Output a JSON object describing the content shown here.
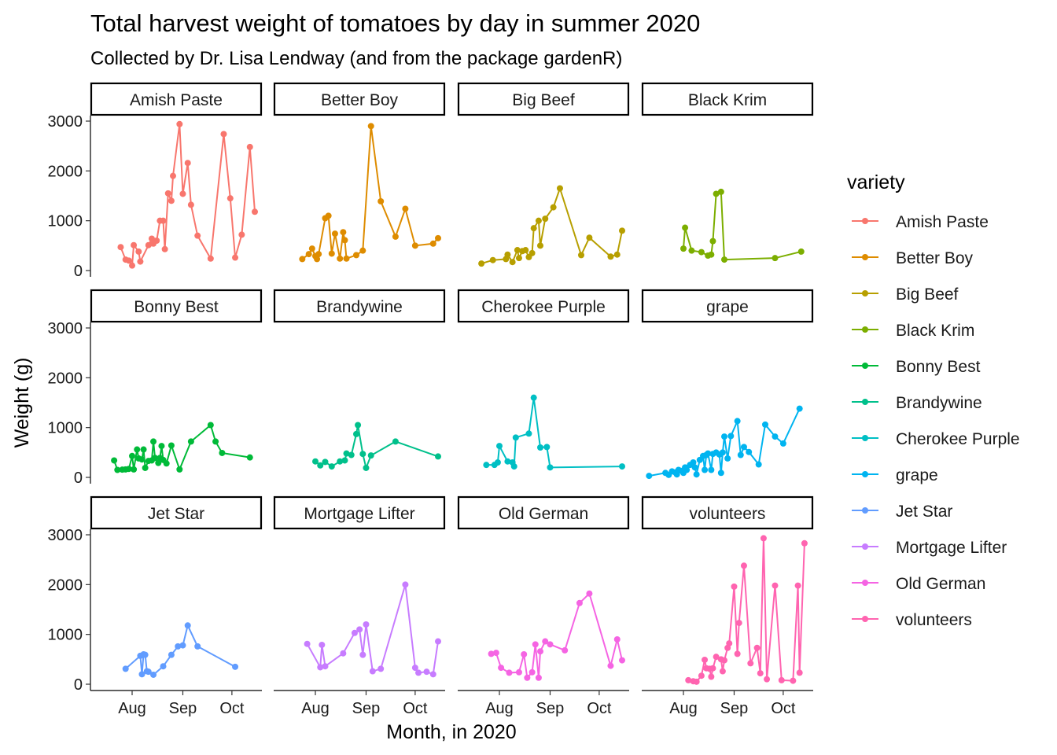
{
  "chart_data": {
    "type": "line",
    "title": "Total harvest weight of tomatoes by day in summer 2020",
    "subtitle": "Collected by Dr. Lisa Lendway (and from the package gardenR)",
    "xlabel": "Month, in 2020",
    "ylabel": "Weight (g)",
    "x_ticks": [
      {
        "date": "2020-08-01",
        "label": "Aug"
      },
      {
        "date": "2020-09-01",
        "label": "Sep"
      },
      {
        "date": "2020-10-01",
        "label": "Oct"
      }
    ],
    "y_ticks": [
      0,
      1000,
      2000,
      3000
    ],
    "xlim": [
      "2020-07-07",
      "2020-10-18"
    ],
    "ylim": [
      -100,
      3150
    ],
    "grid": false,
    "facets": "wrap, 4 columns, shared axes",
    "legend": {
      "title": "variety",
      "position": "right"
    },
    "series": [
      {
        "name": "Amish Paste",
        "color": "#F8766D",
        "points": [
          [
            "2020-07-25",
            470
          ],
          [
            "2020-07-28",
            220
          ],
          [
            "2020-07-30",
            200
          ],
          [
            "2020-08-01",
            100
          ],
          [
            "2020-08-02",
            510
          ],
          [
            "2020-08-05",
            380
          ],
          [
            "2020-08-06",
            180
          ],
          [
            "2020-08-11",
            510
          ],
          [
            "2020-08-13",
            640
          ],
          [
            "2020-08-14",
            540
          ],
          [
            "2020-08-16",
            600
          ],
          [
            "2020-08-18",
            1000
          ],
          [
            "2020-08-20",
            1000
          ],
          [
            "2020-08-21",
            430
          ],
          [
            "2020-08-23",
            1550
          ],
          [
            "2020-08-25",
            1400
          ],
          [
            "2020-08-26",
            1900
          ],
          [
            "2020-08-30",
            2940
          ],
          [
            "2020-09-01",
            1540
          ],
          [
            "2020-09-04",
            2160
          ],
          [
            "2020-09-06",
            1320
          ],
          [
            "2020-09-10",
            700
          ],
          [
            "2020-09-18",
            240
          ],
          [
            "2020-09-26",
            2740
          ],
          [
            "2020-09-30",
            1450
          ],
          [
            "2020-10-03",
            260
          ],
          [
            "2020-10-07",
            720
          ],
          [
            "2020-10-12",
            2480
          ],
          [
            "2020-10-15",
            1180
          ]
        ]
      },
      {
        "name": "Better Boy",
        "color": "#DE8C00",
        "points": [
          [
            "2020-07-24",
            230
          ],
          [
            "2020-07-28",
            330
          ],
          [
            "2020-07-30",
            440
          ],
          [
            "2020-08-01",
            290
          ],
          [
            "2020-08-02",
            230
          ],
          [
            "2020-08-03",
            330
          ],
          [
            "2020-08-07",
            1050
          ],
          [
            "2020-08-09",
            1100
          ],
          [
            "2020-08-11",
            340
          ],
          [
            "2020-08-13",
            740
          ],
          [
            "2020-08-16",
            240
          ],
          [
            "2020-08-18",
            770
          ],
          [
            "2020-08-19",
            610
          ],
          [
            "2020-08-20",
            240
          ],
          [
            "2020-08-26",
            310
          ],
          [
            "2020-08-30",
            400
          ],
          [
            "2020-09-04",
            2900
          ],
          [
            "2020-09-10",
            1390
          ],
          [
            "2020-09-19",
            680
          ],
          [
            "2020-09-25",
            1240
          ],
          [
            "2020-10-01",
            500
          ],
          [
            "2020-10-12",
            540
          ],
          [
            "2020-10-15",
            650
          ]
        ]
      },
      {
        "name": "Big Beef",
        "color": "#B79F00",
        "points": [
          [
            "2020-07-21",
            140
          ],
          [
            "2020-07-28",
            210
          ],
          [
            "2020-08-05",
            230
          ],
          [
            "2020-08-06",
            320
          ],
          [
            "2020-08-09",
            170
          ],
          [
            "2020-08-12",
            410
          ],
          [
            "2020-08-13",
            250
          ],
          [
            "2020-08-15",
            390
          ],
          [
            "2020-08-17",
            410
          ],
          [
            "2020-08-19",
            270
          ],
          [
            "2020-08-21",
            350
          ],
          [
            "2020-08-22",
            850
          ],
          [
            "2020-08-25",
            1000
          ],
          [
            "2020-08-26",
            500
          ],
          [
            "2020-08-29",
            1040
          ],
          [
            "2020-09-03",
            1270
          ],
          [
            "2020-09-07",
            1650
          ],
          [
            "2020-09-20",
            310
          ],
          [
            "2020-09-25",
            660
          ],
          [
            "2020-10-08",
            280
          ],
          [
            "2020-10-12",
            320
          ],
          [
            "2020-10-15",
            800
          ]
        ]
      },
      {
        "name": "Black Krim",
        "color": "#7CAE00",
        "points": [
          [
            "2020-08-01",
            440
          ],
          [
            "2020-08-02",
            860
          ],
          [
            "2020-08-06",
            400
          ],
          [
            "2020-08-12",
            370
          ],
          [
            "2020-08-16",
            300
          ],
          [
            "2020-08-18",
            320
          ],
          [
            "2020-08-19",
            590
          ],
          [
            "2020-08-21",
            1540
          ],
          [
            "2020-08-24",
            1580
          ],
          [
            "2020-08-26",
            220
          ],
          [
            "2020-09-26",
            250
          ],
          [
            "2020-10-12",
            380
          ]
        ]
      },
      {
        "name": "Bonny Best",
        "color": "#00BA38",
        "points": [
          [
            "2020-07-21",
            340
          ],
          [
            "2020-07-23",
            150
          ],
          [
            "2020-07-26",
            155
          ],
          [
            "2020-07-28",
            160
          ],
          [
            "2020-07-30",
            170
          ],
          [
            "2020-08-01",
            430
          ],
          [
            "2020-08-02",
            160
          ],
          [
            "2020-08-04",
            560
          ],
          [
            "2020-08-05",
            380
          ],
          [
            "2020-08-07",
            360
          ],
          [
            "2020-08-08",
            560
          ],
          [
            "2020-08-09",
            190
          ],
          [
            "2020-08-11",
            330
          ],
          [
            "2020-08-13",
            340
          ],
          [
            "2020-08-14",
            720
          ],
          [
            "2020-08-15",
            390
          ],
          [
            "2020-08-17",
            290
          ],
          [
            "2020-08-18",
            390
          ],
          [
            "2020-08-19",
            630
          ],
          [
            "2020-08-20",
            350
          ],
          [
            "2020-08-22",
            280
          ],
          [
            "2020-08-25",
            640
          ],
          [
            "2020-08-30",
            160
          ],
          [
            "2020-09-06",
            720
          ],
          [
            "2020-09-18",
            1050
          ],
          [
            "2020-09-21",
            720
          ],
          [
            "2020-09-25",
            490
          ],
          [
            "2020-10-12",
            400
          ]
        ]
      },
      {
        "name": "Brandywine",
        "color": "#00C08B",
        "points": [
          [
            "2020-08-01",
            320
          ],
          [
            "2020-08-04",
            240
          ],
          [
            "2020-08-07",
            310
          ],
          [
            "2020-08-11",
            220
          ],
          [
            "2020-08-16",
            320
          ],
          [
            "2020-08-19",
            340
          ],
          [
            "2020-08-20",
            480
          ],
          [
            "2020-08-23",
            450
          ],
          [
            "2020-08-26",
            870
          ],
          [
            "2020-08-27",
            1050
          ],
          [
            "2020-08-30",
            470
          ],
          [
            "2020-09-01",
            190
          ],
          [
            "2020-09-04",
            440
          ],
          [
            "2020-09-19",
            720
          ],
          [
            "2020-10-15",
            420
          ]
        ]
      },
      {
        "name": "Cherokee Purple",
        "color": "#00BFC4",
        "points": [
          [
            "2020-07-24",
            250
          ],
          [
            "2020-07-29",
            250
          ],
          [
            "2020-07-31",
            300
          ],
          [
            "2020-08-01",
            630
          ],
          [
            "2020-08-06",
            320
          ],
          [
            "2020-08-09",
            300
          ],
          [
            "2020-08-10",
            220
          ],
          [
            "2020-08-11",
            800
          ],
          [
            "2020-08-19",
            880
          ],
          [
            "2020-08-22",
            1600
          ],
          [
            "2020-08-26",
            600
          ],
          [
            "2020-08-30",
            610
          ],
          [
            "2020-09-01",
            200
          ],
          [
            "2020-10-15",
            220
          ]
        ]
      },
      {
        "name": "grape",
        "color": "#00B4F0",
        "points": [
          [
            "2020-07-11",
            30
          ],
          [
            "2020-07-21",
            90
          ],
          [
            "2020-07-23",
            50
          ],
          [
            "2020-07-25",
            120
          ],
          [
            "2020-07-27",
            100
          ],
          [
            "2020-07-28",
            60
          ],
          [
            "2020-07-29",
            150
          ],
          [
            "2020-07-31",
            130
          ],
          [
            "2020-08-01",
            90
          ],
          [
            "2020-08-02",
            200
          ],
          [
            "2020-08-03",
            150
          ],
          [
            "2020-08-05",
            250
          ],
          [
            "2020-08-07",
            300
          ],
          [
            "2020-08-08",
            200
          ],
          [
            "2020-08-09",
            60
          ],
          [
            "2020-08-11",
            350
          ],
          [
            "2020-08-13",
            430
          ],
          [
            "2020-08-14",
            150
          ],
          [
            "2020-08-15",
            450
          ],
          [
            "2020-08-16",
            480
          ],
          [
            "2020-08-18",
            150
          ],
          [
            "2020-08-19",
            470
          ],
          [
            "2020-08-21",
            500
          ],
          [
            "2020-08-23",
            460
          ],
          [
            "2020-08-24",
            90
          ],
          [
            "2020-08-25",
            500
          ],
          [
            "2020-08-26",
            820
          ],
          [
            "2020-08-28",
            380
          ],
          [
            "2020-08-30",
            830
          ],
          [
            "2020-09-03",
            1130
          ],
          [
            "2020-09-05",
            450
          ],
          [
            "2020-09-07",
            610
          ],
          [
            "2020-09-10",
            510
          ],
          [
            "2020-09-16",
            260
          ],
          [
            "2020-09-20",
            1060
          ],
          [
            "2020-09-26",
            820
          ],
          [
            "2020-10-01",
            680
          ],
          [
            "2020-10-11",
            1380
          ]
        ]
      },
      {
        "name": "Jet Star",
        "color": "#619CFF",
        "points": [
          [
            "2020-07-28",
            310
          ],
          [
            "2020-08-06",
            570
          ],
          [
            "2020-08-07",
            200
          ],
          [
            "2020-08-08",
            600
          ],
          [
            "2020-08-09",
            590
          ],
          [
            "2020-08-10",
            260
          ],
          [
            "2020-08-11",
            250
          ],
          [
            "2020-08-14",
            190
          ],
          [
            "2020-08-20",
            360
          ],
          [
            "2020-08-25",
            590
          ],
          [
            "2020-08-29",
            760
          ],
          [
            "2020-09-01",
            780
          ],
          [
            "2020-09-04",
            1180
          ],
          [
            "2020-09-10",
            760
          ],
          [
            "2020-10-03",
            350
          ]
        ]
      },
      {
        "name": "Mortgage Lifter",
        "color": "#C77CFF",
        "points": [
          [
            "2020-07-27",
            810
          ],
          [
            "2020-08-04",
            340
          ],
          [
            "2020-08-05",
            790
          ],
          [
            "2020-08-07",
            360
          ],
          [
            "2020-08-18",
            620
          ],
          [
            "2020-08-25",
            1030
          ],
          [
            "2020-08-28",
            1100
          ],
          [
            "2020-08-30",
            590
          ],
          [
            "2020-09-01",
            1200
          ],
          [
            "2020-09-05",
            260
          ],
          [
            "2020-09-10",
            310
          ],
          [
            "2020-09-25",
            2000
          ],
          [
            "2020-10-01",
            330
          ],
          [
            "2020-10-03",
            230
          ],
          [
            "2020-10-08",
            250
          ],
          [
            "2020-10-12",
            200
          ],
          [
            "2020-10-15",
            860
          ]
        ]
      },
      {
        "name": "Old German",
        "color": "#F564E3",
        "points": [
          [
            "2020-07-27",
            610
          ],
          [
            "2020-07-30",
            630
          ],
          [
            "2020-08-02",
            330
          ],
          [
            "2020-08-07",
            230
          ],
          [
            "2020-08-13",
            240
          ],
          [
            "2020-08-16",
            600
          ],
          [
            "2020-08-18",
            130
          ],
          [
            "2020-08-21",
            240
          ],
          [
            "2020-08-23",
            800
          ],
          [
            "2020-08-25",
            130
          ],
          [
            "2020-08-26",
            660
          ],
          [
            "2020-08-29",
            860
          ],
          [
            "2020-09-01",
            800
          ],
          [
            "2020-09-10",
            680
          ],
          [
            "2020-09-19",
            1630
          ],
          [
            "2020-09-25",
            1820
          ],
          [
            "2020-10-08",
            370
          ],
          [
            "2020-10-12",
            900
          ],
          [
            "2020-10-15",
            480
          ]
        ]
      },
      {
        "name": "volunteers",
        "color": "#FF64B0",
        "points": [
          [
            "2020-08-04",
            80
          ],
          [
            "2020-08-07",
            60
          ],
          [
            "2020-08-09",
            50
          ],
          [
            "2020-08-12",
            170
          ],
          [
            "2020-08-14",
            490
          ],
          [
            "2020-08-15",
            320
          ],
          [
            "2020-08-17",
            310
          ],
          [
            "2020-08-18",
            150
          ],
          [
            "2020-08-19",
            320
          ],
          [
            "2020-08-21",
            550
          ],
          [
            "2020-08-24",
            500
          ],
          [
            "2020-08-25",
            260
          ],
          [
            "2020-08-26",
            480
          ],
          [
            "2020-08-28",
            730
          ],
          [
            "2020-08-29",
            820
          ],
          [
            "2020-09-01",
            1960
          ],
          [
            "2020-09-03",
            610
          ],
          [
            "2020-09-04",
            1230
          ],
          [
            "2020-09-07",
            2380
          ],
          [
            "2020-09-11",
            420
          ],
          [
            "2020-09-15",
            730
          ],
          [
            "2020-09-17",
            220
          ],
          [
            "2020-09-19",
            2930
          ],
          [
            "2020-09-21",
            100
          ],
          [
            "2020-09-26",
            1980
          ],
          [
            "2020-09-30",
            80
          ],
          [
            "2020-10-07",
            70
          ],
          [
            "2020-10-10",
            1980
          ],
          [
            "2020-10-11",
            230
          ],
          [
            "2020-10-14",
            2830
          ]
        ]
      }
    ]
  }
}
